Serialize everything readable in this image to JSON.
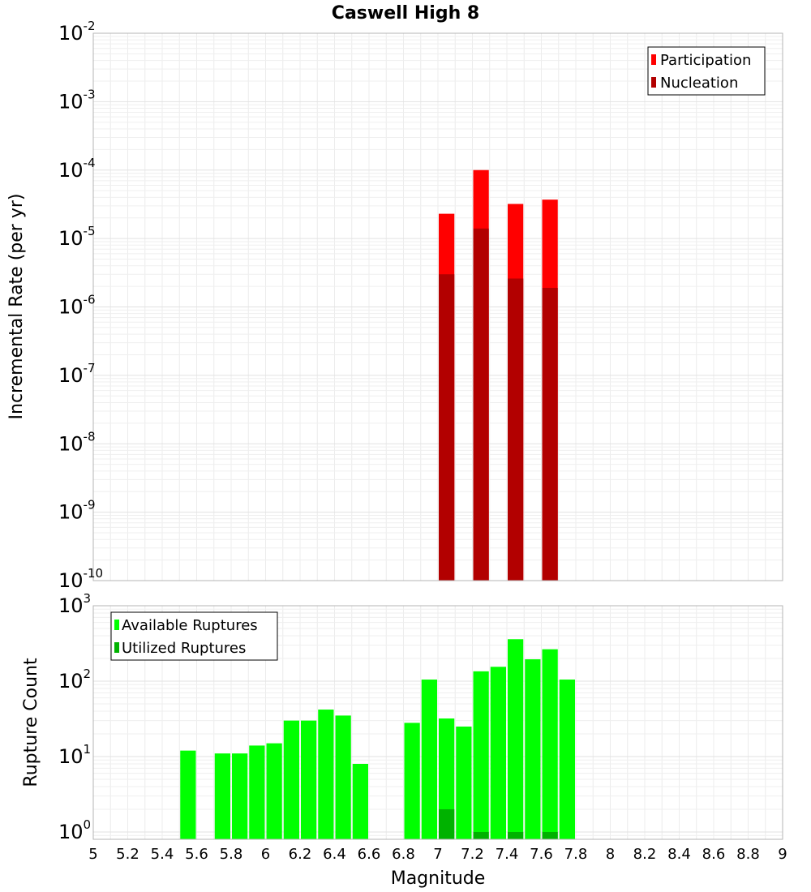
{
  "chart_data": [
    {
      "type": "bar",
      "title": "Caswell High 8",
      "xlabel": "Magnitude",
      "ylabel": "Incremental Rate (per yr)",
      "y_scale": "log",
      "xlim": [
        5,
        9
      ],
      "ylim": [
        1e-10,
        0.01
      ],
      "legend_position": "top-right",
      "series": [
        {
          "name": "Participation",
          "color": "#ff0000",
          "points": [
            {
              "x": 7.05,
              "y": 2.3e-05
            },
            {
              "x": 7.25,
              "y": 0.0001
            },
            {
              "x": 7.45,
              "y": 3.2e-05
            },
            {
              "x": 7.65,
              "y": 3.7e-05
            }
          ]
        },
        {
          "name": "Nucleation",
          "color": "#b20000",
          "points": [
            {
              "x": 7.05,
              "y": 3e-06
            },
            {
              "x": 7.25,
              "y": 1.4e-05
            },
            {
              "x": 7.45,
              "y": 2.6e-06
            },
            {
              "x": 7.65,
              "y": 1.9e-06
            }
          ]
        }
      ]
    },
    {
      "type": "bar",
      "xlabel": "Magnitude",
      "ylabel": "Rupture Count",
      "y_scale": "log",
      "xlim": [
        5,
        9
      ],
      "ylim": [
        0.8,
        1000
      ],
      "legend_position": "top-left",
      "x_ticks": [
        "5",
        "5.2",
        "5.4",
        "5.6",
        "5.8",
        "6",
        "6.2",
        "6.4",
        "6.6",
        "6.8",
        "7",
        "7.2",
        "7.4",
        "7.6",
        "7.8",
        "8",
        "8.2",
        "8.4",
        "8.6",
        "8.8",
        "9"
      ],
      "series": [
        {
          "name": "Available Ruptures",
          "color": "#00ff00",
          "points": [
            {
              "x": 5.55,
              "y": 12
            },
            {
              "x": 5.75,
              "y": 11
            },
            {
              "x": 5.85,
              "y": 11
            },
            {
              "x": 5.95,
              "y": 14
            },
            {
              "x": 6.05,
              "y": 15
            },
            {
              "x": 6.15,
              "y": 30
            },
            {
              "x": 6.25,
              "y": 30
            },
            {
              "x": 6.35,
              "y": 42
            },
            {
              "x": 6.45,
              "y": 35
            },
            {
              "x": 6.55,
              "y": 8
            },
            {
              "x": 6.85,
              "y": 28
            },
            {
              "x": 6.95,
              "y": 105
            },
            {
              "x": 7.05,
              "y": 32
            },
            {
              "x": 7.15,
              "y": 25
            },
            {
              "x": 7.25,
              "y": 135
            },
            {
              "x": 7.35,
              "y": 155
            },
            {
              "x": 7.45,
              "y": 360
            },
            {
              "x": 7.55,
              "y": 195
            },
            {
              "x": 7.65,
              "y": 265
            },
            {
              "x": 7.75,
              "y": 105
            }
          ]
        },
        {
          "name": "Utilized Ruptures",
          "color": "#00b200",
          "points": [
            {
              "x": 7.05,
              "y": 2
            },
            {
              "x": 7.25,
              "y": 1
            },
            {
              "x": 7.45,
              "y": 1
            },
            {
              "x": 7.65,
              "y": 1
            }
          ]
        }
      ]
    }
  ]
}
